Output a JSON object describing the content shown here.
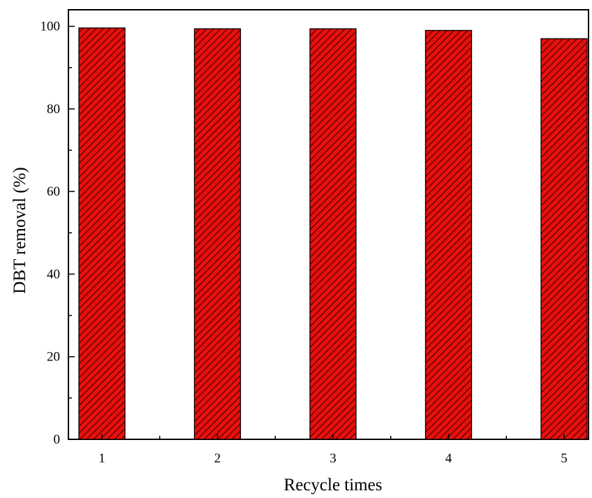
{
  "chart_data": {
    "type": "bar",
    "categories": [
      "1",
      "2",
      "3",
      "4",
      "5"
    ],
    "values": [
      99.6,
      99.4,
      99.4,
      99.0,
      97.0
    ],
    "title": "",
    "xlabel": "Recycle times",
    "ylabel": "DBT removal (%)",
    "ylim": [
      0,
      104
    ],
    "yticks": [
      0,
      20,
      40,
      60,
      80,
      100
    ],
    "grid": false,
    "bar_color": "#e8100e",
    "hatch_color": "#3a0000",
    "axis_color": "#000000"
  }
}
